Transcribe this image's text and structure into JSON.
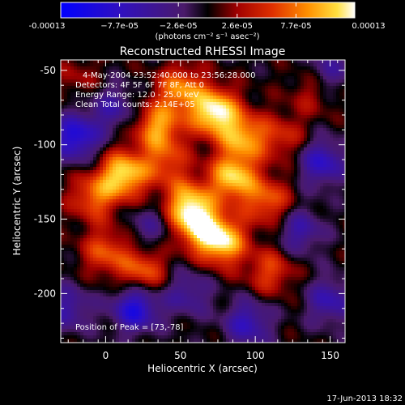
{
  "colorbar": {
    "ticks": [
      "-0.00013",
      "−7.7e-05",
      "−2.6e-05",
      "2.6e-05",
      "7.7e-05",
      "0.00013"
    ],
    "units_label": "(photons cm⁻² s⁻¹ asec⁻²)",
    "min": -0.00013,
    "max": 0.00013
  },
  "chart_data": {
    "type": "heatmap",
    "title": "Reconstructed RHESSI Image",
    "xlabel": "Heliocentric X (arcsec)",
    "ylabel": "Heliocentric Y (arcsec)",
    "xlim": [
      -30,
      160
    ],
    "ylim": [
      -233,
      -43
    ],
    "xticks": [
      0,
      50,
      100,
      150
    ],
    "yticks": [
      -50,
      -100,
      -150,
      -200
    ],
    "annotations": [
      "4-May-2004 23:52:40.000 to 23:56:28.000",
      "Detectors: 4F 5F 6F 7F 8F, Att 0",
      "Energy Range: 12.0 - 25.0 keV",
      "Clean    Total counts: 2.14E+05",
      "Position of Peak = [73,-78]"
    ],
    "peak": [
      73,
      -78
    ],
    "sources": [
      {
        "x": 73,
        "y": -78,
        "value": 1.0
      },
      {
        "x": 92,
        "y": -95,
        "value": 0.7
      },
      {
        "x": 50,
        "y": -63,
        "value": 0.65
      },
      {
        "x": 35,
        "y": -88,
        "value": 0.7
      },
      {
        "x": 12,
        "y": -120,
        "value": 0.9
      },
      {
        "x": -8,
        "y": -135,
        "value": 0.55
      },
      {
        "x": 85,
        "y": -122,
        "value": 0.85
      },
      {
        "x": 55,
        "y": -140,
        "value": 0.8
      },
      {
        "x": 40,
        "y": -112,
        "value": 0.45
      },
      {
        "x": 78,
        "y": -165,
        "value": 0.9
      },
      {
        "x": 62,
        "y": -155,
        "value": 0.7
      },
      {
        "x": 108,
        "y": -138,
        "value": 0.55
      },
      {
        "x": 25,
        "y": -185,
        "value": 0.55
      },
      {
        "x": 0,
        "y": -172,
        "value": 0.5
      },
      {
        "x": 110,
        "y": -185,
        "value": 0.45
      },
      {
        "x": 118,
        "y": -95,
        "value": 0.35
      },
      {
        "x": 138,
        "y": -65,
        "value": 0.25
      },
      {
        "x": -18,
        "y": -55,
        "value": 0.2
      }
    ],
    "minima": [
      {
        "x": -20,
        "y": -95,
        "value": -0.75
      },
      {
        "x": 145,
        "y": -112,
        "value": -0.6
      },
      {
        "x": 20,
        "y": -210,
        "value": -0.75
      },
      {
        "x": 95,
        "y": -220,
        "value": -0.55
      },
      {
        "x": 150,
        "y": -205,
        "value": -0.5
      },
      {
        "x": 130,
        "y": -158,
        "value": -0.45
      },
      {
        "x": 55,
        "y": -200,
        "value": -0.4
      },
      {
        "x": 5,
        "y": -75,
        "value": -0.4
      },
      {
        "x": -25,
        "y": -210,
        "value": -0.45
      },
      {
        "x": 150,
        "y": -50,
        "value": -0.35
      },
      {
        "x": 30,
        "y": -155,
        "value": -0.3
      }
    ]
  },
  "footer": {
    "timestamp": "17-Jun-2013 18:32"
  }
}
